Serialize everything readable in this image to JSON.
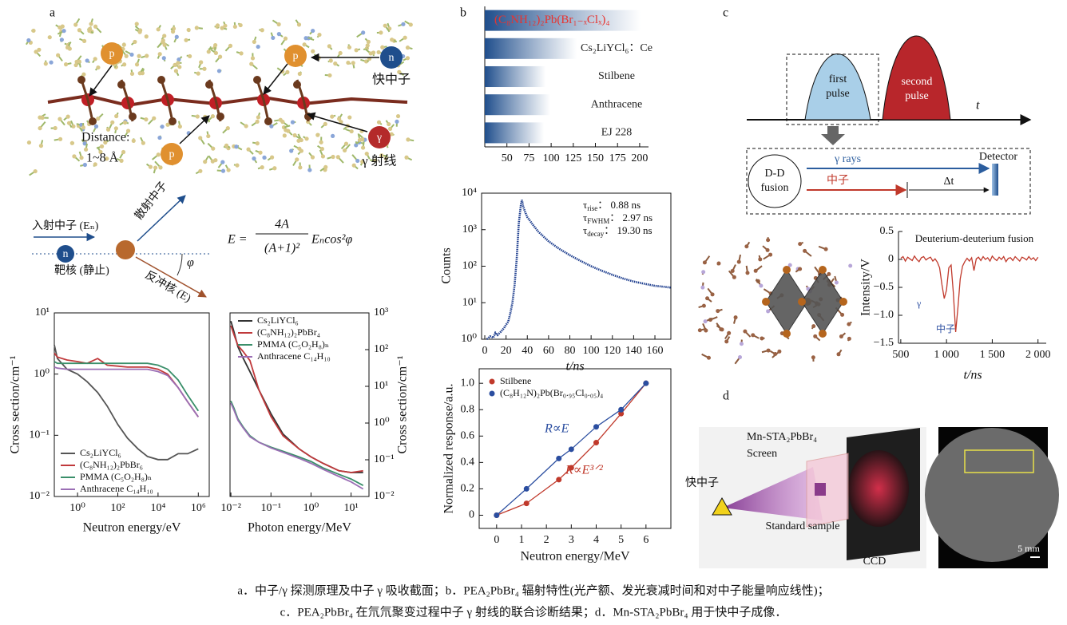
{
  "panel_labels": [
    "a",
    "b",
    "c",
    "d"
  ],
  "diagram_a": {
    "particles": [
      "p",
      "p",
      "p",
      "n",
      "γ"
    ],
    "fast_neutron": "快中子",
    "gamma_ray": "γ 射线",
    "distance": "Distance:",
    "distance_value": "1~8 Å"
  },
  "scattering": {
    "incident": "入射中子 (Eₙ)",
    "scattered": "散射中子",
    "neutron": "n",
    "target": "靶核 (静止)",
    "recoil": "反冲核 (E)",
    "angle": "φ",
    "formula_lhs": "E =",
    "numerator": "4A",
    "denominator": "(A+1)²",
    "factor": "Eₙcos²φ"
  },
  "diagram_c": {
    "first_pulse": [
      "first",
      "pulse"
    ],
    "second_pulse": [
      "second",
      "pulse"
    ],
    "time": "t",
    "source": [
      "D-D",
      "fusion"
    ],
    "gamma": "γ rays",
    "neutron": "中子",
    "delta": "Δt",
    "detector": "Detector"
  },
  "diagram_d": {
    "screen": [
      "Mn-STA₂PbBr₄",
      "Screen"
    ],
    "fast_neutron": "快中子",
    "sample": "Standard sample",
    "ccd": "CCD",
    "scale": "5 mm"
  },
  "caption": [
    "a．中子/γ 探测原理及中子 γ 吸收截面；b．PEA₂PbBr₄ 辐射特性(光产额、发光衰减时间和对中子能量响应线性)；",
    "c．PEA₂PbBr₄ 在氘氘聚变过程中子 γ 射线的联合诊断结果；d．Mn-STA₂PbBr₄ 用于快中子成像．"
  ],
  "chart_data": [
    {
      "type": "line",
      "xlabel": "Neutron energy/eV",
      "ylabel": "Cross section/cm⁻¹",
      "xlog": true,
      "ylog": true,
      "legend": "lower left",
      "xlim": [
        0.07,
        3500000
      ],
      "xticks": [
        {
          "value": 1,
          "label": "10⁰"
        },
        {
          "value": 100,
          "label": "10²"
        },
        {
          "value": 10000,
          "label": "10⁴"
        },
        {
          "value": 1000000,
          "label": "10⁶"
        }
      ],
      "ylim": [
        0.01,
        10
      ],
      "yticks": [
        {
          "value": 0.01,
          "label": "10⁻²"
        },
        {
          "value": 0.1,
          "label": "10⁻¹"
        },
        {
          "value": 1,
          "label": "10⁰"
        },
        {
          "value": 10,
          "label": "10¹"
        }
      ],
      "x": [
        0.07,
        0.1,
        0.3,
        1,
        3,
        10,
        30,
        100,
        300,
        1000,
        3000,
        10000,
        30000,
        100000,
        300000,
        1000000
      ],
      "series": [
        {
          "name": "Cs₂LiYCl₆",
          "color": "#555555",
          "values": [
            3,
            1.8,
            1.2,
            1.0,
            0.75,
            0.5,
            0.3,
            0.15,
            0.09,
            0.06,
            0.045,
            0.04,
            0.04,
            0.05,
            0.05,
            0.06
          ]
        },
        {
          "name": "(C₈NH₁₂)₂PbBr₆",
          "color": "#c0393b",
          "values": [
            2.2,
            1.9,
            1.7,
            1.6,
            1.5,
            1.8,
            1.4,
            1.35,
            1.3,
            1.3,
            1.3,
            1.2,
            1.0,
            0.6,
            0.35,
            0.2
          ]
        },
        {
          "name": "PMMA (C₅O₂H₈)ₙ",
          "color": "#3a8f6a",
          "values": [
            1.6,
            1.5,
            1.5,
            1.5,
            1.5,
            1.5,
            1.5,
            1.5,
            1.5,
            1.5,
            1.5,
            1.4,
            1.2,
            0.8,
            0.45,
            0.25
          ]
        },
        {
          "name": "Anthracene C₁₄H₁₀",
          "color": "#9b6fb5",
          "values": [
            1.3,
            1.25,
            1.2,
            1.2,
            1.2,
            1.2,
            1.2,
            1.2,
            1.2,
            1.2,
            1.2,
            1.1,
            0.95,
            0.6,
            0.35,
            0.2
          ]
        }
      ]
    },
    {
      "type": "line",
      "xlabel": "Photon energy/MeV",
      "ylabel": "Cross section/cm⁻¹",
      "xlog": true,
      "ylog": true,
      "legend": "upper left",
      "xlim": [
        0.0095,
        28
      ],
      "xticks": [
        {
          "value": 0.01,
          "label": "10⁻²"
        },
        {
          "value": 0.1,
          "label": "10⁻¹"
        },
        {
          "value": 1,
          "label": "10⁰"
        },
        {
          "value": 10,
          "label": "10¹"
        }
      ],
      "ylim": [
        0.01,
        1000
      ],
      "yticks": [
        {
          "value": 0.01,
          "label": "10⁻²"
        },
        {
          "value": 0.1,
          "label": "10⁻¹"
        },
        {
          "value": 1,
          "label": "10⁰"
        },
        {
          "value": 10,
          "label": "10¹"
        },
        {
          "value": 100,
          "label": "10²"
        },
        {
          "value": 1000,
          "label": "10³"
        }
      ],
      "x": [
        0.01,
        0.012,
        0.015,
        0.02,
        0.03,
        0.05,
        0.1,
        0.2,
        0.5,
        1,
        2,
        5,
        10,
        20
      ],
      "series": [
        {
          "name": "Cs₂LiYCl₆",
          "color": "#333333",
          "values": [
            600,
            300,
            120,
            60,
            25,
            8,
            1.8,
            0.5,
            0.2,
            0.12,
            0.08,
            0.05,
            0.045,
            0.045
          ]
        },
        {
          "name": "(C₈NH₁₂)₂PbBr₄",
          "color": "#c0393b",
          "values": [
            450,
            250,
            130,
            90,
            50,
            8,
            1.5,
            0.45,
            0.2,
            0.12,
            0.08,
            0.05,
            0.045,
            0.05
          ]
        },
        {
          "name": "PMMA (C₅O₂H₈)ₙ",
          "color": "#3a8f6a",
          "values": [
            4,
            2.5,
            1.3,
            0.8,
            0.45,
            0.3,
            0.22,
            0.17,
            0.12,
            0.09,
            0.06,
            0.04,
            0.03,
            0.02
          ]
        },
        {
          "name": "Anthracene C₁₄H₁₀",
          "color": "#9b6fb5",
          "values": [
            3.5,
            2.2,
            1.2,
            0.75,
            0.42,
            0.3,
            0.21,
            0.16,
            0.11,
            0.08,
            0.055,
            0.035,
            0.025,
            0.016
          ]
        }
      ]
    },
    {
      "type": "bar",
      "orientation": "horizontal",
      "color": "#1f4e8c",
      "categories": [
        "(C₈NH₁₂)₂Pb(Br₁₋ₓClₓ)₄",
        "Cs₂LiYCl₆：Ce",
        "Stilbene",
        "Anthracene",
        "EJ 228"
      ],
      "label_colors": [
        "#e8332f",
        "#222222",
        "#222222",
        "#222222",
        "#222222"
      ],
      "values": [
        201,
        129,
        94,
        99,
        92
      ],
      "xlim": [
        25,
        210
      ],
      "xticks": [
        50,
        75,
        100,
        125,
        150,
        175,
        200
      ]
    },
    {
      "type": "scatter",
      "xlabel": "t/ns",
      "ylabel": "Counts",
      "ylog": true,
      "color": "#1f3f8f",
      "annotations": [
        {
          "symbol": "τ",
          "subscript": "rise",
          "value": "： 0.88 ns"
        },
        {
          "symbol": "τ",
          "subscript": "FWHM",
          "value": "： 2.97 ns"
        },
        {
          "symbol": "τ",
          "subscript": "decay",
          "value": "： 19.30 ns"
        }
      ],
      "xlim": [
        -3,
        175
      ],
      "xticks": [
        0,
        20,
        40,
        60,
        80,
        100,
        120,
        140,
        160
      ],
      "ylim": [
        1,
        10000
      ],
      "yticks": [
        {
          "value": 1,
          "label": "10⁰"
        },
        {
          "value": 10,
          "label": "10¹"
        },
        {
          "value": 100,
          "label": "10²"
        },
        {
          "value": 1000,
          "label": "10³"
        },
        {
          "value": 10000,
          "label": "10⁴"
        }
      ],
      "x": [
        2,
        5,
        8,
        10,
        12,
        15,
        18,
        20,
        22,
        24,
        26,
        28,
        30,
        32,
        34,
        35,
        36,
        38,
        40,
        45,
        50,
        60,
        70,
        80,
        90,
        100,
        110,
        120,
        130,
        140,
        150,
        160,
        170,
        175
      ],
      "values": [
        1,
        1.2,
        1.1,
        1.5,
        1.3,
        1.6,
        2,
        2.5,
        3,
        5,
        10,
        30,
        150,
        1500,
        5000,
        6500,
        4500,
        3000,
        2200,
        1400,
        900,
        480,
        300,
        200,
        140,
        100,
        75,
        58,
        46,
        38,
        33,
        29,
        27,
        26
      ]
    },
    {
      "type": "scatter",
      "xlabel": "Neutron energy/MeV",
      "ylabel": "Normalized response/a.u.",
      "legend": "upper left",
      "annotations": [
        "R∝E",
        "R∝E³ᐟ²"
      ],
      "xlim": [
        -0.7,
        7
      ],
      "xticks": [
        0,
        1,
        2,
        3,
        4,
        5,
        6
      ],
      "ylim": [
        -0.1,
        1.11
      ],
      "yticks": [
        0,
        0.2,
        0.4,
        0.6,
        0.8,
        {
          "value": 1,
          "label": "1.0"
        }
      ],
      "x": [
        0,
        1.2,
        2.5,
        3,
        4,
        5,
        6
      ],
      "series": [
        {
          "name": "Stilbene",
          "color": "#c0392b",
          "values": [
            0,
            0.09,
            0.27,
            0.36,
            0.55,
            0.77,
            1.0
          ]
        },
        {
          "name": "(C₈H₁₂N)₂Pb(Br₀.₉₅Cl₀.₀₅)₄",
          "color": "#2b4ea0",
          "values": [
            0,
            0.2,
            0.43,
            0.5,
            0.67,
            0.8,
            1.0
          ]
        }
      ]
    },
    {
      "type": "line",
      "title": "Deuterium-deuterium fusion",
      "xlabel": "t/ns",
      "ylabel": "Intensity/V",
      "annotations": [
        "γ",
        "中子"
      ],
      "xlim": [
        475,
        2090
      ],
      "xticks": [
        500,
        {
          "value": 1000,
          "label": "1 000"
        },
        {
          "value": 1500,
          "label": "1 500"
        },
        {
          "value": 2000,
          "label": "2 000"
        }
      ],
      "ylim": [
        -1.5,
        0.5
      ],
      "yticks": [
        {
          "value": -1.5,
          "label": "−1.5"
        },
        {
          "value": -1,
          "label": "−1.0"
        },
        {
          "value": -0.5,
          "label": "−0.5"
        },
        0,
        0.5
      ],
      "x": [
        500,
        525,
        550,
        575,
        600,
        625,
        650,
        675,
        700,
        725,
        750,
        775,
        800,
        825,
        850,
        875,
        900,
        925,
        950,
        975,
        1000,
        1025,
        1050,
        1075,
        1100,
        1125,
        1150,
        1175,
        1200,
        1225,
        1250,
        1275,
        1300,
        1325,
        1350,
        1375,
        1400,
        1425,
        1450,
        1475,
        1500,
        1525,
        1550,
        1575,
        1600,
        1625,
        1650,
        1675,
        1700,
        1725,
        1750,
        1775,
        1800,
        1825,
        1850,
        1875,
        1900,
        1925,
        1950,
        1975,
        2000
      ],
      "series": [
        {
          "name": null,
          "color": "#c0392b",
          "values": [
            0.02,
            0.05,
            -0.03,
            0.04,
            0.01,
            -0.02,
            0.06,
            0.0,
            -0.04,
            0.03,
            0.05,
            -0.01,
            0.02,
            0.04,
            -0.03,
            0.01,
            -0.05,
            -0.15,
            -0.45,
            -0.7,
            -0.55,
            -0.15,
            -0.1,
            -0.6,
            -1.3,
            -0.85,
            -0.35,
            -0.12,
            -0.04,
            0.02,
            -0.03,
            0.03,
            -0.2,
            0.01,
            0.04,
            -0.02,
            0.05,
            0.0,
            0.03,
            -0.03,
            0.06,
            0.01,
            -0.02,
            0.04,
            0.0,
            0.05,
            -0.04,
            0.02,
            0.03,
            -0.02,
            0.05,
            0.01,
            -0.03,
            0.04,
            0.02,
            -0.01,
            0.05,
            0.0,
            0.03,
            -0.02,
            0.04
          ]
        }
      ]
    }
  ]
}
